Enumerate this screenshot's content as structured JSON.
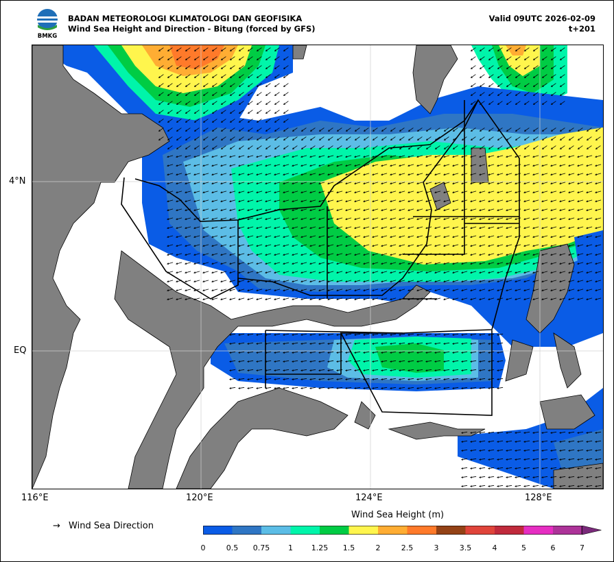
{
  "header": {
    "agency": "BADAN METEOROLOGI KLIMATOLOGI DAN GEOFISIKA",
    "product": "Wind Sea Height and Direction - Bitung (forced by GFS)",
    "valid": "Valid 09UTC 2026-02-09",
    "lead": "t+201",
    "logo_text": "BMKG"
  },
  "axes": {
    "x_ticks": [
      "116°E",
      "120°E",
      "124°E",
      "128°E"
    ],
    "y_ticks": [
      "4°N",
      "EQ"
    ]
  },
  "legend": {
    "arrow_symbol": "→",
    "arrow_label": "Wind Sea Direction",
    "colorbar_title": "Wind Sea Height (m)",
    "levels": [
      "0",
      "0.5",
      "0.75",
      "1",
      "1.25",
      "1.5",
      "2",
      "2.5",
      "3",
      "3.5",
      "4",
      "5",
      "6",
      "7"
    ],
    "colors": [
      "#0a5ce6",
      "#2f76c4",
      "#5cbde6",
      "#00f5aa",
      "#00cc44",
      "#fff54d",
      "#ffad33",
      "#ff7a2a",
      "#944216",
      "#e0443a",
      "#c02a3c",
      "#e62ec2",
      "#ad3399"
    ],
    "extend_color": "#7a2a7a"
  },
  "map": {
    "land_color": "#808080",
    "sea_color": "#ffffff"
  }
}
